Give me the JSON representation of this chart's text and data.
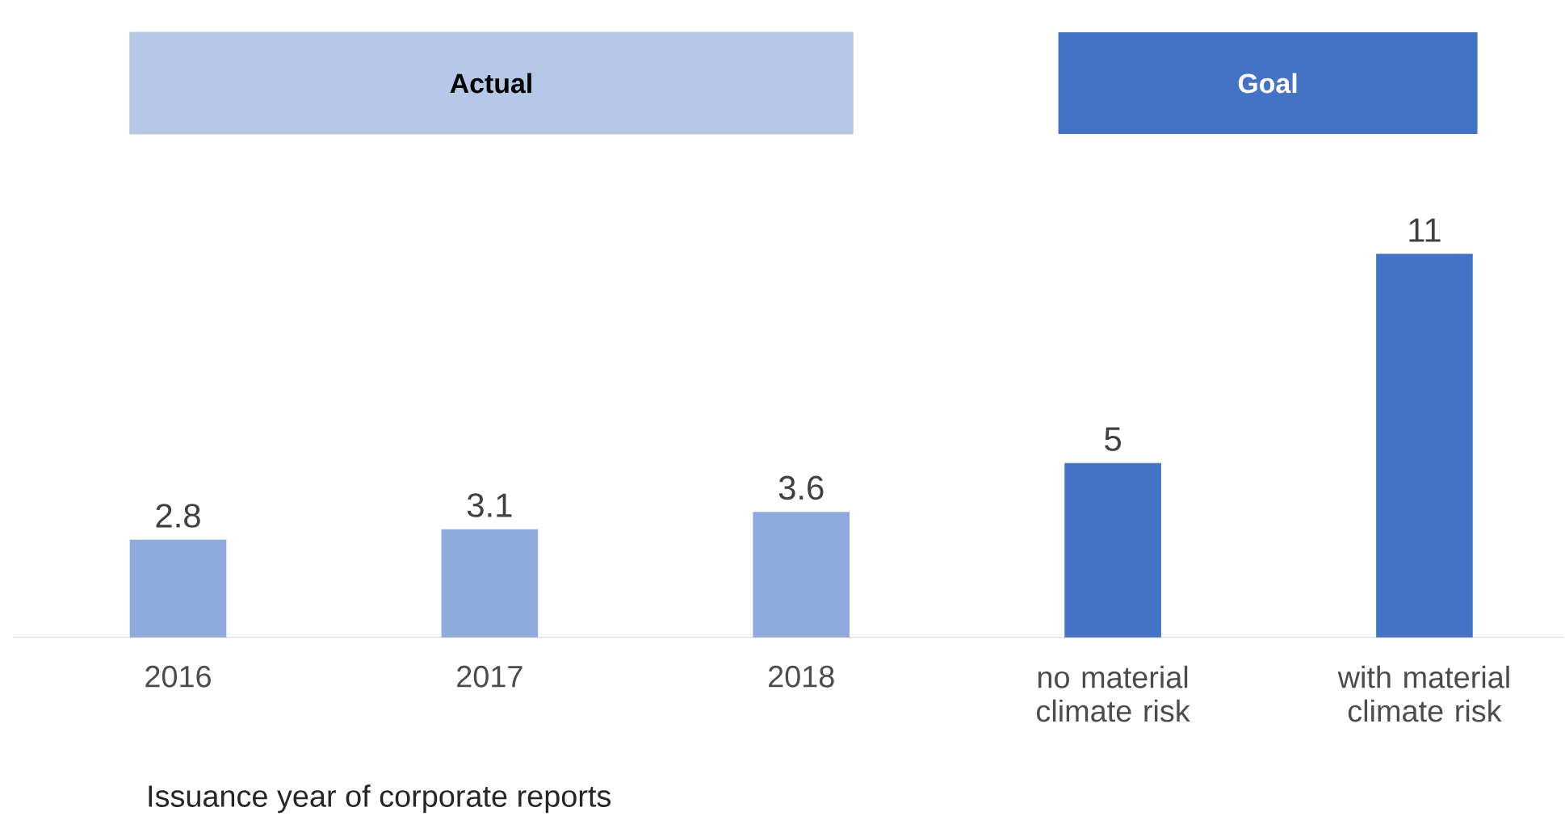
{
  "chart_data": {
    "type": "bar",
    "categories": [
      "2016",
      "2017",
      "2018",
      "no material climate risk",
      "with material climate risk"
    ],
    "values": [
      2.8,
      3.1,
      3.6,
      5,
      11
    ],
    "colors": [
      "#8faadc",
      "#8faadc",
      "#8faadc",
      "#4472c4",
      "#4472c4"
    ],
    "data_labels": true,
    "xlabel": "Issuance year of corporate reports",
    "annotations": [
      "Actual",
      "Goal"
    ]
  }
}
